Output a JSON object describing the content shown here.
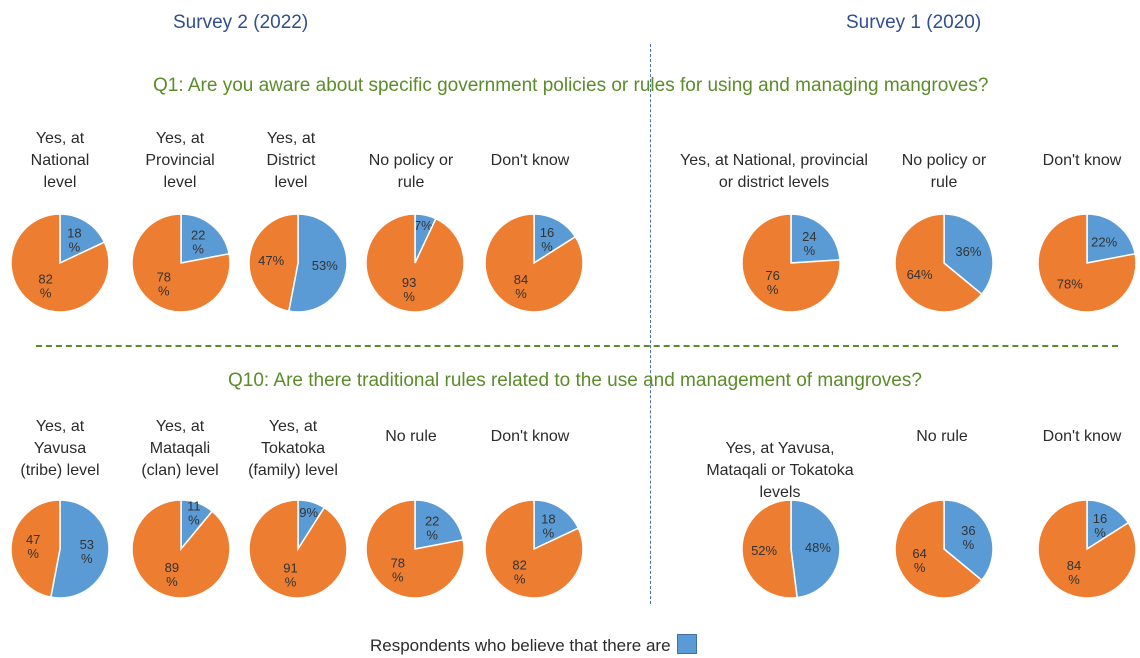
{
  "surveys": {
    "left": "Survey 2 (2022)",
    "right": "Survey 1 (2020)"
  },
  "legend": {
    "text": "Respondents who believe that there are"
  },
  "colors": {
    "yes": "#5b9bd5",
    "no": "#ed7d31"
  },
  "chart_data": [
    {
      "type": "pie",
      "title": "Q1: Are you aware about specific government policies or rules for using and managing mangroves?",
      "survey": "Survey 2 (2022)",
      "pies": [
        {
          "label": "Yes, at\nNational\nlevel",
          "values": [
            18,
            82
          ],
          "text": [
            "18\n%",
            "82\n%"
          ]
        },
        {
          "label": "Yes, at\nProvincial\nlevel",
          "values": [
            22,
            78
          ],
          "text": [
            "22\n%",
            "78\n%"
          ]
        },
        {
          "label": "Yes, at\nDistrict\nlevel",
          "values": [
            53,
            47
          ],
          "text": [
            "53%",
            "47%"
          ]
        },
        {
          "label": "No policy or\nrule",
          "values": [
            7,
            93
          ],
          "text": [
            "7%",
            "93\n%"
          ]
        },
        {
          "label": "Don't know",
          "values": [
            16,
            84
          ],
          "text": [
            "16\n%",
            "84\n%"
          ]
        }
      ]
    },
    {
      "type": "pie",
      "title": "Q1: Are you aware about specific government policies or rules for using and managing mangroves?",
      "survey": "Survey 1 (2020)",
      "pies": [
        {
          "label": "Yes, at National, provincial\nor district levels",
          "values": [
            24,
            76
          ],
          "text": [
            "24\n%",
            "76\n%"
          ]
        },
        {
          "label": "No policy or\nrule",
          "values": [
            36,
            64
          ],
          "text": [
            "36%",
            "64%"
          ]
        },
        {
          "label": "Don't know",
          "values": [
            22,
            78
          ],
          "text": [
            "22%",
            "78%"
          ]
        }
      ]
    },
    {
      "type": "pie",
      "title": "Q10: Are there traditional rules related to the use and management of mangroves?",
      "survey": "Survey 2 (2022)",
      "pies": [
        {
          "label": "Yes, at\nYavusa\n(tribe) level",
          "values": [
            53,
            47
          ],
          "text": [
            "53\n%",
            "47\n%"
          ]
        },
        {
          "label": "Yes, at\nMataqali\n(clan) level",
          "values": [
            11,
            89
          ],
          "text": [
            "11\n%",
            "89\n%"
          ]
        },
        {
          "label": "Yes, at\nTokatoka\n(family) level",
          "values": [
            9,
            91
          ],
          "text": [
            "9%",
            "91\n%"
          ]
        },
        {
          "label": "No rule",
          "values": [
            22,
            78
          ],
          "text": [
            "22\n%",
            "78\n%"
          ]
        },
        {
          "label": "Don't know",
          "values": [
            18,
            82
          ],
          "text": [
            "18\n%",
            "82\n%"
          ]
        }
      ]
    },
    {
      "type": "pie",
      "title": "Q10: Are there traditional rules related to the use and management of mangroves?",
      "survey": "Survey 1 (2020)",
      "pies": [
        {
          "label": "Yes, at Yavusa,\nMataqali or Tokatoka\nlevels",
          "values": [
            48,
            52
          ],
          "text": [
            "48%",
            "52%"
          ]
        },
        {
          "label": "No rule",
          "values": [
            36,
            64
          ],
          "text": [
            "36\n%",
            "64\n%"
          ]
        },
        {
          "label": "Don't know",
          "values": [
            16,
            84
          ],
          "text": [
            "16\n%",
            "84\n%"
          ]
        }
      ]
    }
  ]
}
